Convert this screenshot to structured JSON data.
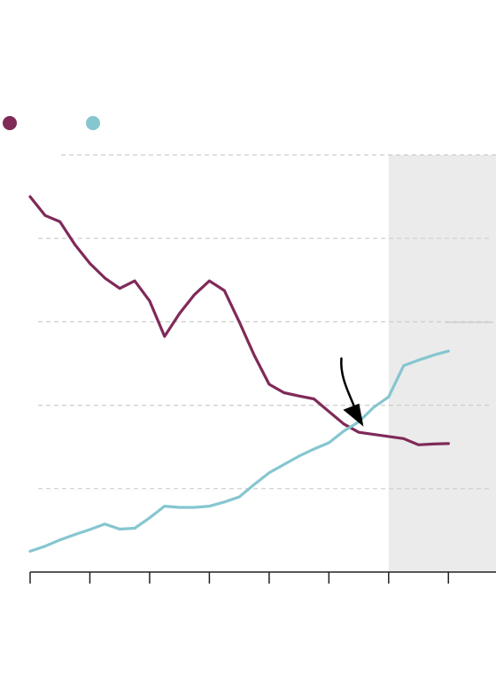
{
  "colors": {
    "series_a": "#7f2a58",
    "series_b": "#86c6d0",
    "shade": "#ebebeb",
    "grid": "#cccccc",
    "axis": "#222222",
    "arrow": "#000000"
  },
  "chart_data": {
    "type": "line",
    "xlim": [
      0,
      15
    ],
    "ylim": [
      0,
      10
    ],
    "grid": true,
    "shaded_region_from_x": 12,
    "series": [
      {
        "color_key": "series_a",
        "x": [
          0,
          0.5,
          1,
          1.5,
          2,
          2.5,
          3,
          3.5,
          4,
          4.5,
          5,
          5.5,
          6,
          6.5,
          7,
          7.5,
          8,
          8.5,
          9,
          9.5,
          10,
          10.5,
          11,
          11.5,
          12,
          12.5,
          13,
          13.5,
          14
        ],
        "values": [
          9.0,
          8.55,
          8.4,
          7.85,
          7.4,
          7.05,
          6.8,
          6.98,
          6.5,
          5.65,
          6.2,
          6.65,
          6.98,
          6.75,
          6.0,
          5.2,
          4.5,
          4.3,
          4.22,
          4.15,
          3.85,
          3.55,
          3.35,
          3.3,
          3.25,
          3.2,
          3.05,
          3.07,
          3.08
        ]
      },
      {
        "color_key": "series_b",
        "x": [
          0,
          0.5,
          1,
          1.5,
          2,
          2.5,
          3,
          3.5,
          4,
          4.5,
          5,
          5.5,
          6,
          6.5,
          7,
          7.5,
          8,
          8.5,
          9,
          9.5,
          10,
          10.5,
          11,
          11.5,
          12,
          12.5,
          13,
          13.5,
          14
        ],
        "values": [
          0.5,
          0.62,
          0.77,
          0.9,
          1.02,
          1.15,
          1.03,
          1.05,
          1.3,
          1.58,
          1.55,
          1.55,
          1.58,
          1.68,
          1.8,
          2.1,
          2.38,
          2.58,
          2.78,
          2.95,
          3.1,
          3.38,
          3.6,
          3.95,
          4.2,
          4.95,
          5.08,
          5.2,
          5.3
        ]
      }
    ],
    "x_ticks": [
      0,
      2,
      4,
      6,
      8,
      10,
      12,
      14,
      16
    ],
    "y_gridlines": [
      2,
      4,
      6,
      8,
      10
    ],
    "annotation": {
      "type": "arrow",
      "points_to_x": 11.1,
      "points_to_y": 3.55
    }
  }
}
